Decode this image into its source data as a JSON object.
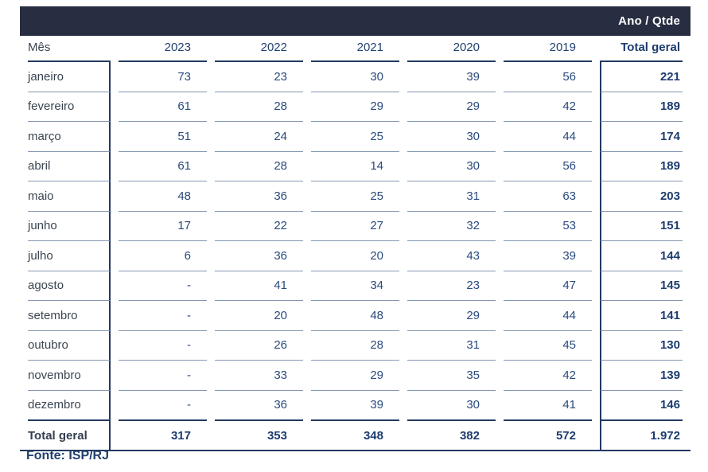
{
  "header_bar": {
    "label": "Ano / Qtde"
  },
  "table": {
    "columns": [
      "Mês",
      "2023",
      "2022",
      "2021",
      "2020",
      "2019",
      "Total geral"
    ],
    "rows": [
      {
        "month": "janeiro",
        "values": [
          "73",
          "23",
          "30",
          "39",
          "56"
        ],
        "total": "221"
      },
      {
        "month": "fevereiro",
        "values": [
          "61",
          "28",
          "29",
          "29",
          "42"
        ],
        "total": "189"
      },
      {
        "month": "março",
        "values": [
          "51",
          "24",
          "25",
          "30",
          "44"
        ],
        "total": "174"
      },
      {
        "month": "abril",
        "values": [
          "61",
          "28",
          "14",
          "30",
          "56"
        ],
        "total": "189"
      },
      {
        "month": "maio",
        "values": [
          "48",
          "36",
          "25",
          "31",
          "63"
        ],
        "total": "203"
      },
      {
        "month": "junho",
        "values": [
          "17",
          "22",
          "27",
          "32",
          "53"
        ],
        "total": "151"
      },
      {
        "month": "julho",
        "values": [
          "6",
          "36",
          "20",
          "43",
          "39"
        ],
        "total": "144"
      },
      {
        "month": "agosto",
        "values": [
          "-",
          "41",
          "34",
          "23",
          "47"
        ],
        "total": "145"
      },
      {
        "month": "setembro",
        "values": [
          "-",
          "20",
          "48",
          "29",
          "44"
        ],
        "total": "141"
      },
      {
        "month": "outubro",
        "values": [
          "-",
          "26",
          "28",
          "31",
          "45"
        ],
        "total": "130"
      },
      {
        "month": "novembro",
        "values": [
          "-",
          "33",
          "29",
          "35",
          "42"
        ],
        "total": "139"
      },
      {
        "month": "dezembro",
        "values": [
          "-",
          "36",
          "39",
          "30",
          "41"
        ],
        "total": "146"
      }
    ],
    "total_row": {
      "label": "Total geral",
      "values": [
        "317",
        "353",
        "348",
        "382",
        "572"
      ],
      "total": "1.972"
    }
  },
  "footer": {
    "source": "Fonte: ISP/RJ"
  },
  "colors": {
    "header_bar_bg": "#282e41",
    "header_bar_text": "#ffffff",
    "dark_line": "#233a60",
    "light_divider": "#8496b0",
    "number_text": "#2a4a7d",
    "total_text": "#1d3c6e",
    "month_text": "#3b4551",
    "source_text": "#21406e"
  },
  "chart_data": {
    "type": "table",
    "title": "Ano / Qtde",
    "corner_label": "Mês",
    "columns": [
      "2023",
      "2022",
      "2021",
      "2020",
      "2019"
    ],
    "row_categories": [
      "janeiro",
      "fevereiro",
      "março",
      "abril",
      "maio",
      "junho",
      "julho",
      "agosto",
      "setembro",
      "outubro",
      "novembro",
      "dezembro"
    ],
    "series": [
      {
        "name": "2023",
        "values": [
          73,
          61,
          51,
          61,
          48,
          17,
          6,
          null,
          null,
          null,
          null,
          null
        ]
      },
      {
        "name": "2022",
        "values": [
          23,
          28,
          24,
          28,
          36,
          22,
          36,
          41,
          20,
          26,
          33,
          36
        ]
      },
      {
        "name": "2021",
        "values": [
          30,
          29,
          25,
          14,
          25,
          27,
          20,
          34,
          48,
          28,
          29,
          39
        ]
      },
      {
        "name": "2020",
        "values": [
          39,
          29,
          30,
          30,
          31,
          32,
          43,
          23,
          29,
          31,
          35,
          30
        ]
      },
      {
        "name": "2019",
        "values": [
          56,
          42,
          44,
          56,
          63,
          53,
          39,
          47,
          44,
          45,
          42,
          41
        ]
      }
    ],
    "row_totals": [
      221,
      189,
      174,
      189,
      203,
      151,
      144,
      145,
      141,
      130,
      139,
      146
    ],
    "column_totals": [
      317,
      353,
      348,
      382,
      572
    ],
    "grand_total": 1972,
    "grand_total_display": "1.972",
    "missing_value_display": "-",
    "total_label": "Total geral",
    "source": "Fonte: ISP/RJ"
  }
}
